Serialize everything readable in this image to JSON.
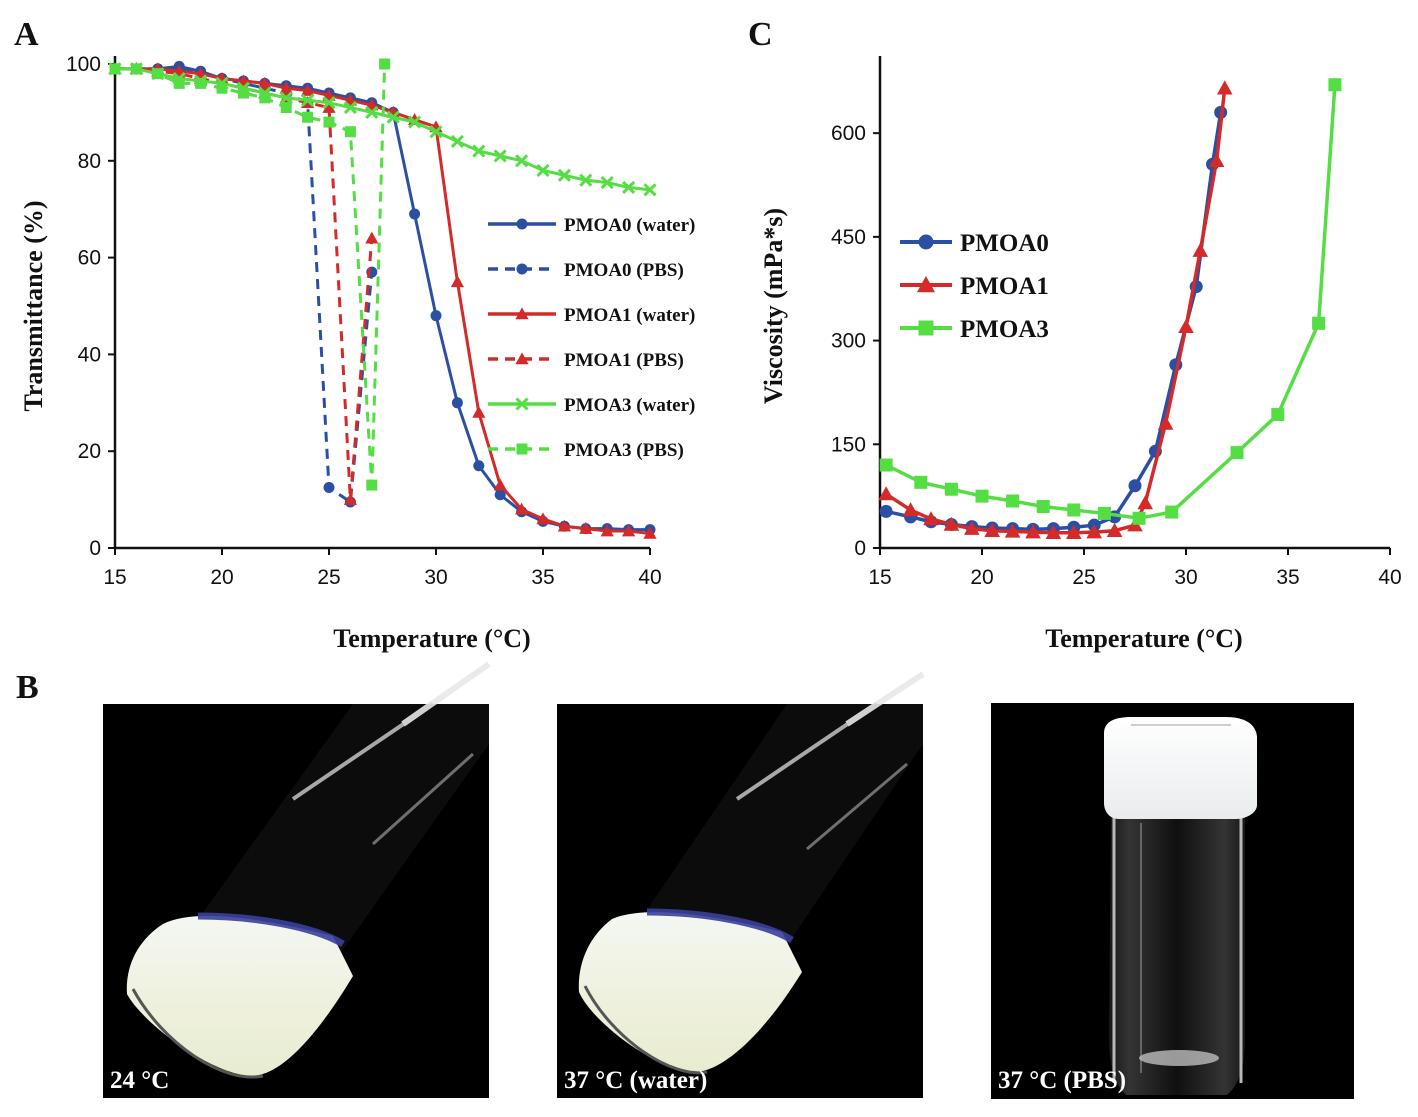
{
  "panel_letters": {
    "a": "A",
    "b": "B",
    "c": "C"
  },
  "photos": [
    {
      "label": "24 °C"
    },
    {
      "label": "37 °C (water)"
    },
    {
      "label": "37 °C (PBS)"
    }
  ],
  "chart_data": [
    {
      "type": "line",
      "panel": "A",
      "xlabel": "Temperature (°C)",
      "ylabel": "Transmittance (%)",
      "xlim": [
        15,
        40
      ],
      "ylim": [
        0,
        100
      ],
      "xticks": [
        15,
        20,
        25,
        30,
        35,
        40
      ],
      "yticks": [
        0,
        20,
        40,
        60,
        80,
        100
      ],
      "legend_position": "right",
      "series": [
        {
          "name": "PMOA0 (water)",
          "color": "#2a4fa3",
          "dash": "solid",
          "marker": "circle",
          "x": [
            15,
            16,
            17,
            18,
            19,
            20,
            21,
            22,
            23,
            24,
            25,
            26,
            27,
            28,
            29,
            30,
            31,
            32,
            33,
            34,
            35,
            36,
            37,
            38,
            39,
            40
          ],
          "y": [
            99,
            99,
            99,
            99.5,
            98.5,
            97,
            96.5,
            96,
            95.5,
            95,
            94,
            93,
            92,
            90,
            69,
            48,
            30,
            17,
            11,
            7.5,
            5.5,
            4.5,
            4,
            4,
            3.8,
            3.8
          ]
        },
        {
          "name": "PMOA0 (PBS)",
          "color": "#2a4fa3",
          "dash": "dashed",
          "marker": "circle",
          "x": [
            15,
            16,
            17,
            18,
            19,
            20,
            21,
            22,
            23,
            24,
            25,
            26,
            27
          ],
          "y": [
            99,
            99,
            99,
            99,
            98,
            97,
            96,
            95,
            94,
            92,
            12.5,
            9.5,
            57
          ]
        },
        {
          "name": "PMOA1 (water)",
          "color": "#d42a2a",
          "dash": "solid",
          "marker": "triangle",
          "x": [
            15,
            16,
            17,
            18,
            19,
            20,
            21,
            22,
            23,
            24,
            25,
            26,
            27,
            28,
            29,
            30,
            31,
            32,
            33,
            34,
            35,
            36,
            37,
            38,
            39,
            40
          ],
          "y": [
            99,
            99,
            99,
            98.5,
            98,
            97,
            96.5,
            96,
            95,
            94.5,
            93.5,
            92.5,
            91.5,
            90,
            88.5,
            87,
            55,
            28,
            13,
            8,
            6,
            4.5,
            4,
            3.5,
            3.5,
            3
          ]
        },
        {
          "name": "PMOA1 (PBS)",
          "color": "#d42a2a",
          "dash": "dashed",
          "marker": "triangle",
          "x": [
            15,
            16,
            17,
            18,
            19,
            20,
            21,
            22,
            23,
            24,
            25,
            26,
            27
          ],
          "y": [
            99,
            99,
            98.5,
            98,
            97,
            96,
            95,
            94,
            93,
            92,
            91,
            10,
            64
          ]
        },
        {
          "name": "PMOA3 (water)",
          "color": "#55dd44",
          "dash": "solid",
          "marker": "cross",
          "x": [
            15,
            16,
            17,
            18,
            19,
            20,
            21,
            22,
            23,
            24,
            25,
            26,
            27,
            28,
            29,
            30,
            31,
            32,
            33,
            34,
            35,
            36,
            37,
            38,
            39,
            40
          ],
          "y": [
            99,
            99,
            98,
            97,
            96.5,
            96,
            95,
            94,
            93,
            92.5,
            92,
            91,
            90,
            89,
            88,
            86,
            84,
            82,
            81,
            80,
            78,
            77,
            76,
            75.5,
            74.5,
            74
          ]
        },
        {
          "name": "PMOA3 (PBS)",
          "color": "#55dd44",
          "dash": "dashed",
          "marker": "square",
          "x": [
            15,
            16,
            17,
            18,
            19,
            20,
            21,
            22,
            23,
            24,
            25,
            26,
            27,
            27.6
          ],
          "y": [
            99,
            99,
            98,
            96,
            96,
            95,
            94,
            93,
            91,
            89,
            88,
            86,
            13,
            100
          ]
        }
      ]
    },
    {
      "type": "line",
      "panel": "C",
      "xlabel": "Temperature (°C)",
      "ylabel": "Viscosity (mPa*s)",
      "xlim": [
        15,
        40
      ],
      "ylim": [
        0,
        700
      ],
      "xticks": [
        15,
        20,
        25,
        30,
        35,
        40
      ],
      "yticks": [
        0,
        150,
        300,
        450,
        600
      ],
      "legend_position": "left",
      "series": [
        {
          "name": "PMOA0",
          "color": "#2a4fa3",
          "marker": "circle",
          "x": [
            15.3,
            16.5,
            17.5,
            18.5,
            19.5,
            20.5,
            21.5,
            22.5,
            23.5,
            24.5,
            25.5,
            26.5,
            27.5,
            28.5,
            29.5,
            30.5,
            31.3,
            31.7
          ],
          "y": [
            53,
            45,
            38,
            34,
            31,
            29,
            28,
            27,
            28,
            30,
            33,
            45,
            90,
            140,
            265,
            378,
            555,
            630
          ]
        },
        {
          "name": "PMOA1",
          "color": "#d42a2a",
          "marker": "triangle",
          "x": [
            15.3,
            16.5,
            17.5,
            18.5,
            19.5,
            20.5,
            21.5,
            22.5,
            23.5,
            24.5,
            25.5,
            26.5,
            27.5,
            28,
            29,
            30,
            30.7,
            31.5,
            31.9
          ],
          "y": [
            78,
            55,
            42,
            34,
            28,
            25,
            24,
            23,
            22,
            22,
            23,
            25,
            33,
            65,
            180,
            320,
            430,
            560,
            665
          ]
        },
        {
          "name": "PMOA3",
          "color": "#55dd44",
          "marker": "square",
          "x": [
            15.3,
            17,
            18.5,
            20,
            21.5,
            23,
            24.5,
            26,
            27.7,
            29.3,
            32.5,
            34.5,
            36.5,
            37.3
          ],
          "y": [
            120,
            95,
            85,
            75,
            68,
            60,
            55,
            50,
            43,
            52,
            138,
            193,
            325,
            670
          ]
        }
      ]
    }
  ]
}
